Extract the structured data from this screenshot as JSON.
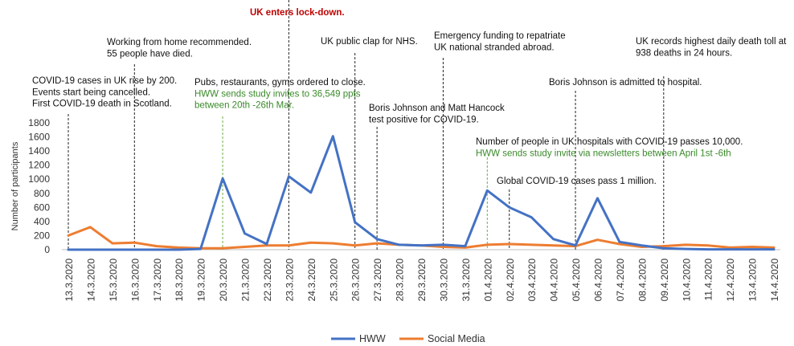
{
  "chart_data": {
    "type": "line",
    "ylabel": "Number of participants",
    "ylim": [
      0,
      1800
    ],
    "yticks": [
      0,
      200,
      400,
      600,
      800,
      1000,
      1200,
      1400,
      1600,
      1800
    ],
    "categories": [
      "13.3.2020",
      "14.3.2020",
      "15.3.2020",
      "16.3.2020",
      "17.3.2020",
      "18.3.2020",
      "19.3.2020",
      "20.3.2020",
      "21.3.2020",
      "22.3.2020",
      "23.3.2020",
      "24.3.2020",
      "25.3.2020",
      "26.3.2020",
      "27.3.2020",
      "28.3.2020",
      "29.3.2020",
      "30.3.2020",
      "31.3.2020",
      "01.4.2020",
      "02.4.2020",
      "03.4.2020",
      "04.4.2020",
      "05.4.2020",
      "06.4.2020",
      "07.4.2020",
      "08.4.2020",
      "09.4.2020",
      "10.4.2020",
      "11.4.2020",
      "12.4.2020",
      "13.4.2020",
      "14.4.2020"
    ],
    "series": [
      {
        "name": "HWW",
        "color": "#4472c4",
        "values": [
          0,
          0,
          0,
          0,
          0,
          0,
          10,
          1010,
          230,
          80,
          1040,
          810,
          1610,
          390,
          150,
          70,
          60,
          70,
          50,
          840,
          600,
          460,
          150,
          60,
          730,
          110,
          60,
          20,
          10,
          5,
          5,
          5,
          5
        ]
      },
      {
        "name": "Social Media",
        "color": "#ed7d31",
        "values": [
          200,
          320,
          90,
          100,
          50,
          30,
          20,
          20,
          40,
          60,
          60,
          100,
          90,
          60,
          90,
          70,
          60,
          40,
          30,
          70,
          80,
          70,
          60,
          50,
          140,
          80,
          40,
          50,
          70,
          60,
          30,
          40,
          30
        ]
      }
    ],
    "legend_position": "bottom",
    "grid": false,
    "annotations": [
      {
        "date": "13.3.2020",
        "style": "black",
        "lines": [
          "COVID-19 cases in UK rise by 200.",
          "Events start being cancelled.",
          "First COVID-19 death in Scotland."
        ]
      },
      {
        "date": "16.3.2020",
        "style": "black",
        "lines": [
          "Working from home recommended.",
          "55 people have died."
        ]
      },
      {
        "date": "20.3.2020",
        "style": "green",
        "lines": [
          "Pubs, restaurants, gyms ordered to close."
        ],
        "green_lines": [
          "HWW sends study invites to 36,549 ppts",
          "between 20th -26th Mar."
        ]
      },
      {
        "date": "23.3.2020",
        "style": "red",
        "lines": [
          "UK enters lock-down."
        ]
      },
      {
        "date": "26.3.2020",
        "style": "black",
        "lines": [
          "UK public clap for NHS."
        ]
      },
      {
        "date": "27.3.2020",
        "style": "black",
        "lines": [
          "Boris Johnson and Matt Hancock",
          "test positive for COVID-19."
        ]
      },
      {
        "date": "30.3.2020",
        "style": "black",
        "lines": [
          "Emergency funding to repatriate",
          "UK national stranded abroad."
        ]
      },
      {
        "date": "01.4.2020",
        "style": "green",
        "lines": [
          "Number of people in UK hospitals with COVID-19 passes 10,000."
        ],
        "green_lines": [
          "HWW sends study invite via newsletters between April 1st -6th"
        ]
      },
      {
        "date": "02.4.2020",
        "style": "black",
        "lines": [
          "Global COVID-19 cases pass 1 million."
        ]
      },
      {
        "date": "05.4.2020",
        "style": "black",
        "lines": [
          "Boris Johnson is admitted to hospital."
        ]
      },
      {
        "date": "09.4.2020",
        "style": "black",
        "lines": [
          "UK records highest daily death toll at",
          "938 deaths in 24 hours."
        ]
      }
    ]
  }
}
